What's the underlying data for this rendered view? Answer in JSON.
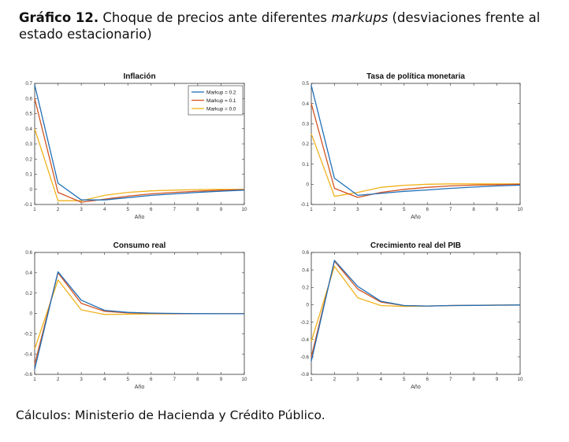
{
  "figure": {
    "number": "Gráfico 12.",
    "title_before": "Choque de precios ante diferentes ",
    "title_italic": "markups",
    "title_after": " (desviaciones frente al estado estacionario)",
    "source": "Cálculos: Ministerio de Hacienda y Crédito Público."
  },
  "colors": {
    "markup_0_2": "#1f6fb8",
    "markup_0_1": "#d35420",
    "markup_0_0": "#f0b21b",
    "axis": "#333333"
  },
  "chart_data": [
    {
      "type": "line",
      "title": "Inflación",
      "xlabel": "Año",
      "ylabel": "",
      "x": [
        1,
        2,
        3,
        4,
        5,
        6,
        7,
        8,
        9,
        10
      ],
      "xlim": [
        1,
        10
      ],
      "ylim": [
        -0.1,
        0.7
      ],
      "yticks": [
        -0.1,
        0,
        0.1,
        0.2,
        0.3,
        0.4,
        0.5,
        0.6,
        0.7
      ],
      "ytick_labels": [
        "-0.1",
        "0",
        "0.1",
        "0.2",
        "0.3",
        "0.4",
        "0.5",
        "0.6",
        "0.7"
      ],
      "xticks": [
        1,
        2,
        3,
        4,
        5,
        6,
        7,
        8,
        9,
        10
      ],
      "xtick_labels": [
        "1",
        "2",
        "3",
        "4",
        "5",
        "6",
        "7",
        "8",
        "9",
        "10"
      ],
      "legend_position": "top-right",
      "grid": false,
      "series": [
        {
          "name": "Markup = 0.2",
          "color": "#1f6fb8",
          "values": [
            0.69,
            0.04,
            -0.07,
            -0.07,
            -0.055,
            -0.04,
            -0.03,
            -0.02,
            -0.012,
            -0.005
          ]
        },
        {
          "name": "Markup = 0.1",
          "color": "#d35420",
          "values": [
            0.6,
            -0.02,
            -0.085,
            -0.065,
            -0.045,
            -0.03,
            -0.02,
            -0.012,
            -0.006,
            -0.002
          ]
        },
        {
          "name": "Markup = 0.0",
          "color": "#f0b21b",
          "values": [
            0.4,
            -0.075,
            -0.075,
            -0.04,
            -0.02,
            -0.01,
            -0.005,
            -0.002,
            0,
            0
          ]
        }
      ]
    },
    {
      "type": "line",
      "title": "Tasa de política monetaria",
      "xlabel": "Año",
      "ylabel": "",
      "x": [
        1,
        2,
        3,
        4,
        5,
        6,
        7,
        8,
        9,
        10
      ],
      "xlim": [
        1,
        10
      ],
      "ylim": [
        -0.1,
        0.5
      ],
      "yticks": [
        -0.1,
        0,
        0.1,
        0.2,
        0.3,
        0.4,
        0.5
      ],
      "ytick_labels": [
        "-0.1",
        "0",
        "0.1",
        "0.2",
        "0.3",
        "0.4",
        "0.5"
      ],
      "xticks": [
        1,
        2,
        3,
        4,
        5,
        6,
        7,
        8,
        9,
        10
      ],
      "xtick_labels": [
        "1",
        "2",
        "3",
        "4",
        "5",
        "6",
        "7",
        "8",
        "9",
        "10"
      ],
      "grid": false,
      "series": [
        {
          "name": "Markup = 0.2",
          "color": "#1f6fb8",
          "values": [
            0.49,
            0.03,
            -0.055,
            -0.045,
            -0.035,
            -0.028,
            -0.02,
            -0.014,
            -0.008,
            -0.004
          ]
        },
        {
          "name": "Markup = 0.1",
          "color": "#d35420",
          "values": [
            0.4,
            -0.02,
            -0.065,
            -0.04,
            -0.025,
            -0.015,
            -0.008,
            -0.004,
            -0.002,
            0
          ]
        },
        {
          "name": "Markup = 0.0",
          "color": "#f0b21b",
          "values": [
            0.25,
            -0.06,
            -0.04,
            -0.015,
            -0.005,
            0,
            0.002,
            0.002,
            0.002,
            0.002
          ]
        }
      ]
    },
    {
      "type": "line",
      "title": "Consumo real",
      "xlabel": "Año",
      "ylabel": "",
      "x": [
        1,
        2,
        3,
        4,
        5,
        6,
        7,
        8,
        9,
        10
      ],
      "xlim": [
        1,
        10
      ],
      "ylim": [
        -0.6,
        0.6
      ],
      "yticks": [
        -0.6,
        -0.4,
        -0.2,
        0,
        0.2,
        0.4,
        0.6
      ],
      "ytick_labels": [
        "-0.6",
        "-0.4",
        "-0.2",
        "0",
        "0.2",
        "0.4",
        "0.6"
      ],
      "xticks": [
        1,
        2,
        3,
        4,
        5,
        6,
        7,
        8,
        9,
        10
      ],
      "xtick_labels": [
        "1",
        "2",
        "3",
        "4",
        "5",
        "6",
        "7",
        "8",
        "9",
        "10"
      ],
      "grid": false,
      "series": [
        {
          "name": "Markup = 0.2",
          "color": "#1f6fb8",
          "values": [
            -0.55,
            0.41,
            0.13,
            0.03,
            0.01,
            0.003,
            0,
            -0.002,
            -0.003,
            -0.003
          ]
        },
        {
          "name": "Markup = 0.1",
          "color": "#d35420",
          "values": [
            -0.5,
            0.4,
            0.1,
            0.02,
            0.005,
            0,
            -0.002,
            -0.003,
            -0.003,
            -0.003
          ]
        },
        {
          "name": "Markup = 0.0",
          "color": "#f0b21b",
          "values": [
            -0.35,
            0.33,
            0.035,
            -0.01,
            -0.008,
            -0.005,
            -0.004,
            -0.003,
            -0.003,
            -0.003
          ]
        }
      ]
    },
    {
      "type": "line",
      "title": "Crecimiento real del PIB",
      "xlabel": "Año",
      "ylabel": "",
      "x": [
        1,
        2,
        3,
        4,
        5,
        6,
        7,
        8,
        9,
        10
      ],
      "xlim": [
        1,
        10
      ],
      "ylim": [
        -0.8,
        0.6
      ],
      "yticks": [
        -0.8,
        -0.6,
        -0.4,
        -0.2,
        0,
        0.2,
        0.4,
        0.6
      ],
      "ytick_labels": [
        "-0.8",
        "-0.6",
        "-0.4",
        "-0.2",
        "0",
        "0.2",
        "0.4",
        "0.6"
      ],
      "xticks": [
        1,
        2,
        3,
        4,
        5,
        6,
        7,
        8,
        9,
        10
      ],
      "xtick_labels": [
        "1",
        "2",
        "3",
        "4",
        "5",
        "6",
        "7",
        "8",
        "9",
        "10"
      ],
      "grid": false,
      "series": [
        {
          "name": "Markup = 0.2",
          "color": "#1f6fb8",
          "values": [
            -0.65,
            0.51,
            0.21,
            0.04,
            -0.01,
            -0.015,
            -0.01,
            -0.008,
            -0.005,
            -0.003
          ]
        },
        {
          "name": "Markup = 0.1",
          "color": "#d35420",
          "values": [
            -0.6,
            0.5,
            0.18,
            0.03,
            -0.01,
            -0.015,
            -0.01,
            -0.008,
            -0.005,
            -0.003
          ]
        },
        {
          "name": "Markup = 0.0",
          "color": "#f0b21b",
          "values": [
            -0.42,
            0.44,
            0.08,
            -0.01,
            -0.02,
            -0.015,
            -0.01,
            -0.006,
            -0.004,
            -0.002
          ]
        }
      ]
    }
  ]
}
